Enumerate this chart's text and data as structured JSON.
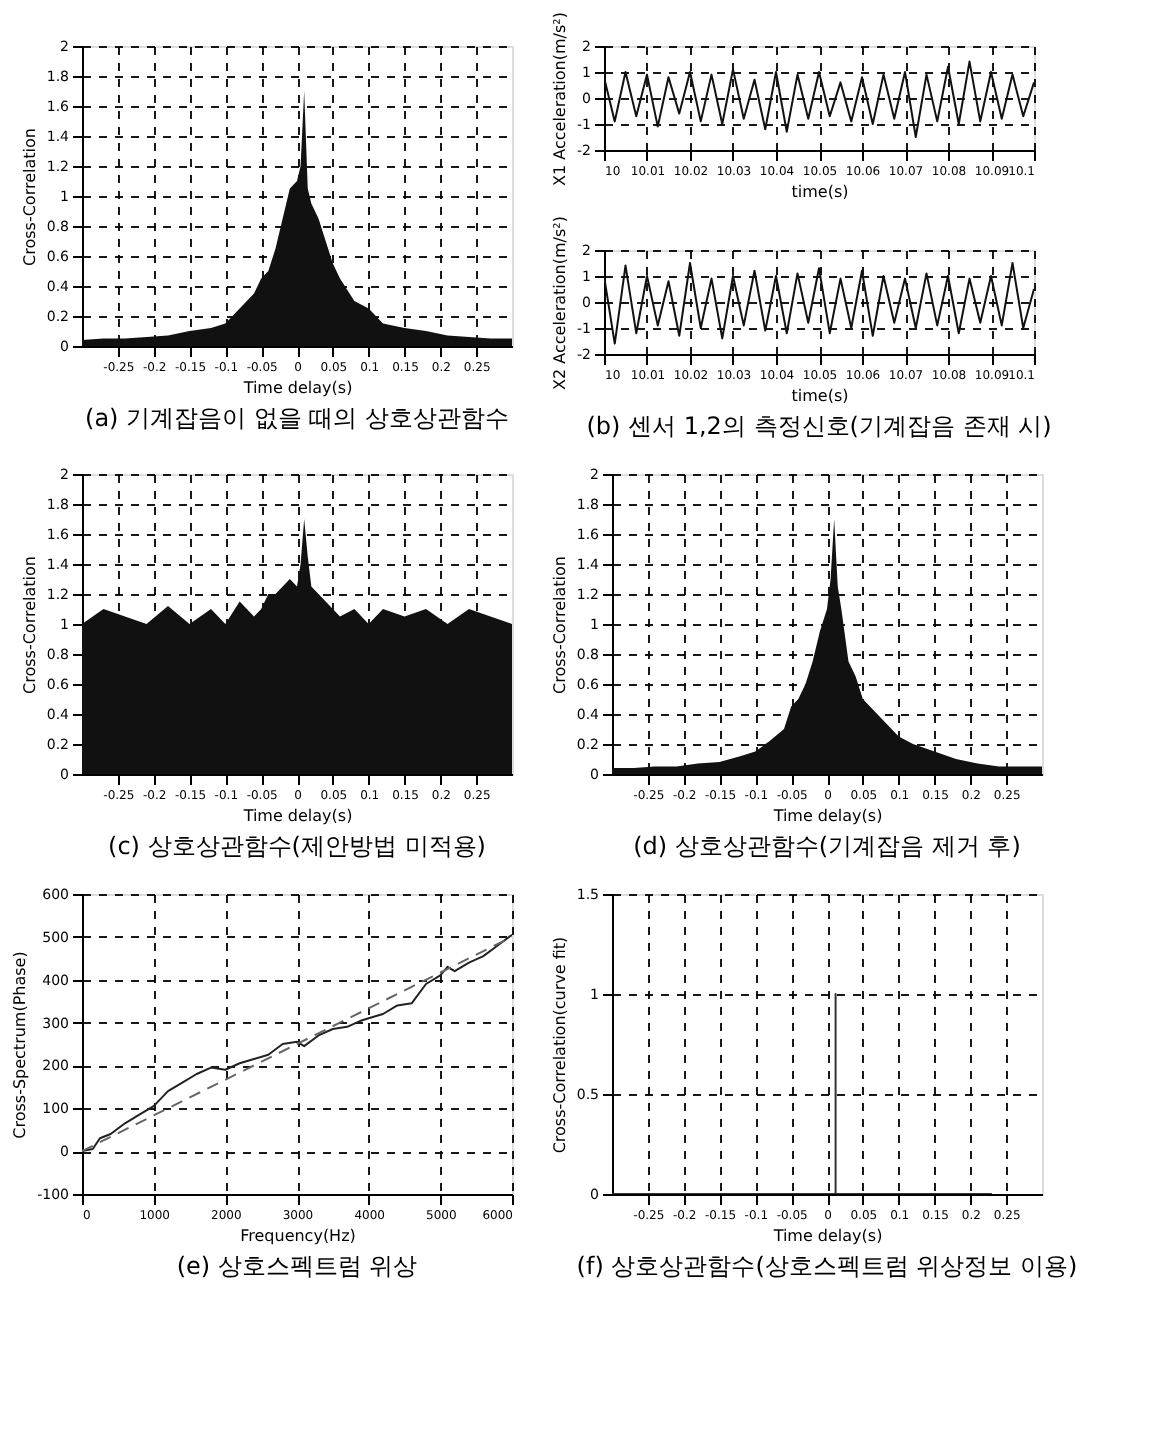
{
  "chart_data": [
    {
      "type": "area",
      "title": "(a) 기계잡음이 없을 때의 상호상관함수",
      "xlabel": "Time delay(s)",
      "ylabel": "Cross-Correlation",
      "xlim": [
        -0.3,
        0.3
      ],
      "ylim": [
        0,
        2
      ],
      "xticks": [
        -0.25,
        -0.2,
        -0.15,
        -0.1,
        -0.05,
        0,
        0.05,
        0.1,
        0.15,
        0.2,
        0.25
      ],
      "yticks": [
        0,
        0.2,
        0.4,
        0.6,
        0.8,
        1,
        1.2,
        1.4,
        1.6,
        1.8,
        2
      ],
      "grid": true,
      "x": [
        -0.3,
        -0.27,
        -0.24,
        -0.21,
        -0.18,
        -0.15,
        -0.12,
        -0.1,
        -0.08,
        -0.06,
        -0.05,
        -0.04,
        -0.03,
        -0.02,
        -0.01,
        0,
        0.005,
        0.01,
        0.015,
        0.02,
        0.03,
        0.04,
        0.05,
        0.06,
        0.08,
        0.1,
        0.12,
        0.15,
        0.18,
        0.21,
        0.24,
        0.27,
        0.3
      ],
      "series": [
        {
          "color": "#111111",
          "values": [
            0.04,
            0.05,
            0.05,
            0.06,
            0.07,
            0.1,
            0.12,
            0.15,
            0.25,
            0.35,
            0.45,
            0.5,
            0.65,
            0.85,
            1.05,
            1.1,
            1.2,
            1.7,
            1.05,
            0.95,
            0.85,
            0.7,
            0.55,
            0.45,
            0.3,
            0.25,
            0.15,
            0.12,
            0.1,
            0.07,
            0.06,
            0.05,
            0.05
          ]
        }
      ]
    },
    {
      "type": "line",
      "xlabel": "time(s)",
      "ylabel": "X1 Acceleration(m/s²)",
      "xlim": [
        10,
        10.1
      ],
      "ylim": [
        -2,
        2
      ],
      "xticks": [
        10,
        10.01,
        10.02,
        10.03,
        10.04,
        10.05,
        10.06,
        10.07,
        10.08,
        10.09,
        10.1
      ],
      "yticks": [
        -2,
        -1,
        0,
        1,
        2
      ],
      "grid": true,
      "line_style": "solid",
      "x": [
        10,
        10.0025,
        10.005,
        10.0075,
        10.01,
        10.0125,
        10.015,
        10.0175,
        10.02,
        10.0225,
        10.025,
        10.0275,
        10.03,
        10.0325,
        10.035,
        10.0375,
        10.04,
        10.0425,
        10.045,
        10.0475,
        10.05,
        10.0525,
        10.055,
        10.0575,
        10.06,
        10.0625,
        10.065,
        10.0675,
        10.07,
        10.0725,
        10.075,
        10.0775,
        10.08,
        10.0825,
        10.085,
        10.0875,
        10.09,
        10.0925,
        10.095,
        10.0975,
        10.1
      ],
      "series": [
        {
          "color": "#111111",
          "values": [
            0.8,
            -0.9,
            1.0,
            -0.7,
            0.9,
            -1.1,
            0.8,
            -0.6,
            1.0,
            -0.9,
            0.9,
            -1.0,
            1.1,
            -0.8,
            0.7,
            -1.2,
            1.0,
            -1.3,
            0.9,
            -0.8,
            1.0,
            -0.7,
            0.6,
            -0.9,
            0.8,
            -1.0,
            0.9,
            -0.8,
            1.0,
            -1.5,
            0.9,
            -0.9,
            1.2,
            -1.0,
            1.4,
            -0.9,
            1.0,
            -0.8,
            0.9,
            -0.7,
            0.6
          ]
        }
      ]
    },
    {
      "type": "line",
      "title": "(b) 센서 1,2의 측정신호(기계잡음 존재 시)",
      "xlabel": "time(s)",
      "ylabel": "X2 Acceleration(m/s²)",
      "xlim": [
        10,
        10.1
      ],
      "ylim": [
        -2,
        2
      ],
      "xticks": [
        10,
        10.01,
        10.02,
        10.03,
        10.04,
        10.05,
        10.06,
        10.07,
        10.08,
        10.09,
        10.1
      ],
      "yticks": [
        -2,
        -1,
        0,
        1,
        2
      ],
      "grid": true,
      "line_style": "solid",
      "x": [
        10,
        10.0025,
        10.005,
        10.0075,
        10.01,
        10.0125,
        10.015,
        10.0175,
        10.02,
        10.0225,
        10.025,
        10.0275,
        10.03,
        10.0325,
        10.035,
        10.0375,
        10.04,
        10.0425,
        10.045,
        10.0475,
        10.05,
        10.0525,
        10.055,
        10.0575,
        10.06,
        10.0625,
        10.065,
        10.0675,
        10.07,
        10.0725,
        10.075,
        10.0775,
        10.08,
        10.0825,
        10.085,
        10.0875,
        10.09,
        10.0925,
        10.095,
        10.0975,
        10.1
      ],
      "series": [
        {
          "color": "#111111",
          "values": [
            1.0,
            -1.6,
            1.4,
            -1.2,
            1.0,
            -0.9,
            0.8,
            -1.3,
            1.5,
            -1.0,
            0.9,
            -1.4,
            1.0,
            -0.9,
            1.2,
            -1.1,
            1.0,
            -1.2,
            1.1,
            -0.8,
            1.3,
            -1.2,
            0.9,
            -1.0,
            1.2,
            -1.3,
            1.0,
            -0.8,
            0.9,
            -1.0,
            1.1,
            -0.9,
            1.0,
            -1.2,
            0.9,
            -0.8,
            1.0,
            -0.9,
            1.5,
            -1.0,
            0.5
          ]
        }
      ]
    },
    {
      "type": "area",
      "title": "(c) 상호상관함수(제안방법 미적용)",
      "xlabel": "Time delay(s)",
      "ylabel": "Cross-Correlation",
      "xlim": [
        -0.3,
        0.3
      ],
      "ylim": [
        0,
        2
      ],
      "xticks": [
        -0.25,
        -0.2,
        -0.15,
        -0.1,
        -0.05,
        0,
        0.05,
        0.1,
        0.15,
        0.2,
        0.25
      ],
      "yticks": [
        0,
        0.2,
        0.4,
        0.6,
        0.8,
        1,
        1.2,
        1.4,
        1.6,
        1.8,
        2
      ],
      "grid": true,
      "x": [
        -0.3,
        -0.27,
        -0.24,
        -0.21,
        -0.18,
        -0.15,
        -0.12,
        -0.1,
        -0.08,
        -0.06,
        -0.05,
        -0.04,
        -0.03,
        -0.02,
        -0.01,
        0,
        0.005,
        0.01,
        0.015,
        0.02,
        0.03,
        0.04,
        0.05,
        0.06,
        0.08,
        0.1,
        0.12,
        0.15,
        0.18,
        0.21,
        0.24,
        0.27,
        0.3
      ],
      "series": [
        {
          "color": "#111111",
          "values": [
            1.0,
            1.1,
            1.05,
            1.0,
            1.12,
            1.0,
            1.1,
            1.0,
            1.15,
            1.05,
            1.1,
            1.2,
            1.2,
            1.25,
            1.3,
            1.25,
            1.4,
            1.7,
            1.45,
            1.25,
            1.2,
            1.15,
            1.1,
            1.05,
            1.1,
            1.0,
            1.1,
            1.05,
            1.1,
            1.0,
            1.1,
            1.05,
            1.0
          ]
        }
      ]
    },
    {
      "type": "area",
      "title": "(d) 상호상관함수(기계잡음 제거 후)",
      "xlabel": "Time delay(s)",
      "ylabel": "Cross-Correlation",
      "xlim": [
        -0.3,
        0.3
      ],
      "ylim": [
        0,
        2
      ],
      "xticks": [
        -0.25,
        -0.2,
        -0.15,
        -0.1,
        -0.05,
        0,
        0.05,
        0.1,
        0.15,
        0.2,
        0.25
      ],
      "yticks": [
        0,
        0.2,
        0.4,
        0.6,
        0.8,
        1,
        1.2,
        1.4,
        1.6,
        1.8,
        2
      ],
      "grid": true,
      "x": [
        -0.3,
        -0.27,
        -0.24,
        -0.21,
        -0.18,
        -0.15,
        -0.12,
        -0.1,
        -0.08,
        -0.06,
        -0.05,
        -0.04,
        -0.03,
        -0.02,
        -0.01,
        0,
        0.005,
        0.01,
        0.015,
        0.02,
        0.03,
        0.04,
        0.05,
        0.06,
        0.08,
        0.1,
        0.12,
        0.15,
        0.18,
        0.21,
        0.24,
        0.27,
        0.3
      ],
      "series": [
        {
          "color": "#111111",
          "values": [
            0.04,
            0.04,
            0.05,
            0.05,
            0.07,
            0.08,
            0.12,
            0.15,
            0.22,
            0.3,
            0.45,
            0.5,
            0.6,
            0.75,
            0.95,
            1.1,
            1.3,
            1.7,
            1.25,
            1.1,
            0.75,
            0.65,
            0.5,
            0.45,
            0.35,
            0.25,
            0.2,
            0.15,
            0.1,
            0.07,
            0.05,
            0.05,
            0.05
          ]
        }
      ]
    },
    {
      "type": "line",
      "title": "(e) 상호스펙트럼 위상",
      "xlabel": "Frequency(Hz)",
      "ylabel": "Cross-Spectrum(Phase)",
      "xlim": [
        0,
        6000
      ],
      "ylim": [
        -100,
        600
      ],
      "xticks": [
        0,
        1000,
        2000,
        3000,
        4000,
        5000,
        6000
      ],
      "yticks": [
        -100,
        0,
        100,
        200,
        300,
        400,
        500,
        600
      ],
      "grid": true,
      "series": [
        {
          "color": "#222222",
          "line_style": "solid",
          "x": [
            0,
            150,
            250,
            400,
            600,
            800,
            1000,
            1200,
            1400,
            1600,
            1800,
            2000,
            2200,
            2400,
            2600,
            2800,
            3000,
            3100,
            3300,
            3500,
            3700,
            3900,
            4000,
            4200,
            4400,
            4600,
            4800,
            5000,
            5100,
            5200,
            5400,
            5600,
            5800,
            6000
          ],
          "values": [
            0,
            5,
            30,
            40,
            65,
            85,
            105,
            140,
            160,
            180,
            195,
            190,
            205,
            215,
            225,
            250,
            255,
            245,
            270,
            285,
            290,
            305,
            310,
            320,
            340,
            345,
            390,
            410,
            430,
            420,
            440,
            455,
            480,
            505
          ]
        },
        {
          "color": "#666666",
          "line_style": "dashed",
          "x": [
            0,
            6000
          ],
          "values": [
            0,
            500
          ]
        }
      ]
    },
    {
      "type": "line",
      "title": "(f) 상호상관함수(상호스펙트럼 위상정보 이용)",
      "xlabel": "Time delay(s)",
      "ylabel": "Cross-Correlation(curve fit)",
      "xlim": [
        -0.3,
        0.3
      ],
      "ylim": [
        0,
        1.5
      ],
      "xticks": [
        -0.25,
        -0.2,
        -0.15,
        -0.1,
        -0.05,
        0,
        0.05,
        0.1,
        0.15,
        0.2,
        0.25
      ],
      "yticks": [
        0,
        0.5,
        1,
        1.5
      ],
      "grid": true,
      "line_style": "solid",
      "x": [
        -0.3,
        0.012,
        0.012,
        0.012,
        0.23
      ],
      "series": [
        {
          "color": "#333333",
          "values": [
            0,
            0,
            1,
            0,
            0
          ]
        }
      ]
    }
  ]
}
